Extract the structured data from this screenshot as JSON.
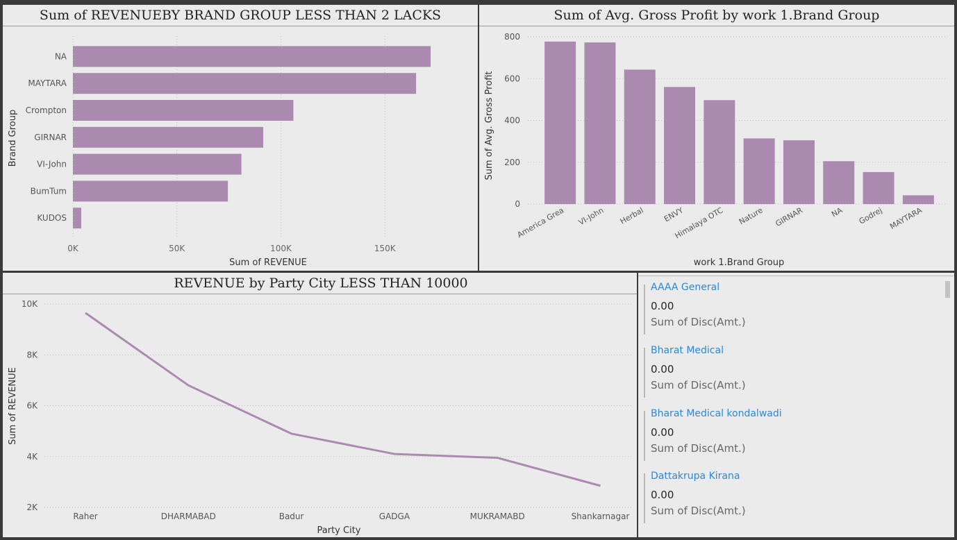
{
  "revenue_by_brand": {
    "title": "Sum of REVENUEBY BRAND GROUP LESS THAN 2 LACKS",
    "xlabel": "Sum of REVENUE",
    "ylabel": "Brand Group",
    "x_ticks": [
      "0K",
      "50K",
      "100K",
      "150K"
    ]
  },
  "gross_profit": {
    "title": "Sum of Avg. Gross Profit by work 1.Brand Group",
    "xlabel": "work 1.Brand Group",
    "ylabel": "Sum of Avg. Gross Profit",
    "y_ticks": [
      "800",
      "600",
      "400",
      "200",
      "0"
    ]
  },
  "revenue_by_city": {
    "title": "REVENUE by Party City LESS THAN 10000",
    "xlabel": "Party City",
    "ylabel": "Sum of REVENUE",
    "y_ticks": [
      "10K",
      "8K",
      "6K",
      "4K",
      "2K"
    ]
  },
  "cards": [
    {
      "name": "AAAA General",
      "value": "0.00",
      "label": "Sum of Disc(Amt.)"
    },
    {
      "name": "Bharat Medical",
      "value": "0.00",
      "label": "Sum of Disc(Amt.)"
    },
    {
      "name": "Bharat Medical kondalwadi",
      "value": "0.00",
      "label": "Sum of Disc(Amt.)"
    },
    {
      "name": "Dattakrupa Kirana",
      "value": "0.00",
      "label": "Sum of Disc(Amt.)"
    }
  ],
  "colors": {
    "accent": "#ab8aaf",
    "link": "#2b88d8"
  },
  "chart_data": [
    {
      "type": "bar",
      "orientation": "horizontal",
      "title": "Sum of REVENUEBY BRAND GROUP LESS THAN 2 LACKS",
      "xlabel": "Sum of REVENUE",
      "ylabel": "Brand Group",
      "categories": [
        "NA",
        "MAYTARA",
        "Crompton",
        "GIRNAR",
        "VI-John",
        "BumTum",
        "KUDOS"
      ],
      "values": [
        172000,
        165000,
        106000,
        91500,
        81000,
        74500,
        4000
      ],
      "xlim": [
        0,
        190000
      ],
      "grid": true
    },
    {
      "type": "bar",
      "title": "Sum of Avg. Gross Profit by work 1.Brand Group",
      "xlabel": "work 1.Brand Group",
      "ylabel": "Sum of Avg. Gross Profit",
      "categories": [
        "America Grea",
        "VI-John",
        "Herbal",
        "ENVY",
        "Himalaya OTC",
        "Nature",
        "GIRNAR",
        "NA",
        "Godrej",
        "MAYTARA"
      ],
      "values": [
        777,
        773,
        643,
        560,
        497,
        314,
        305,
        205,
        153,
        42
      ],
      "ylim": [
        0,
        800
      ],
      "grid": true
    },
    {
      "type": "line",
      "title": "REVENUE by Party City LESS THAN 10000",
      "xlabel": "Party City",
      "ylabel": "Sum of REVENUE",
      "categories": [
        "Raher",
        "DHARMABAD",
        "Badur",
        "GADGA",
        "MUKRAMABD",
        "Shankarnagar"
      ],
      "values": [
        9650,
        6800,
        4900,
        4100,
        3950,
        2850
      ],
      "ylim": [
        2000,
        10000
      ],
      "grid": true
    }
  ]
}
